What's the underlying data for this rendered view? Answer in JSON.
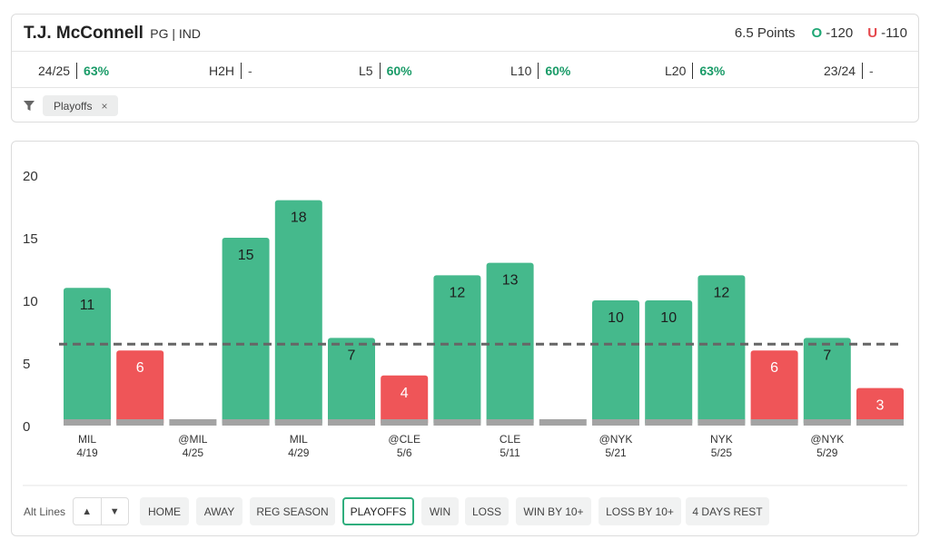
{
  "player": {
    "name": "T.J. McConnell",
    "position_team": "PG | IND"
  },
  "line": {
    "points_label": "6.5 Points",
    "over_letter": "O",
    "over_odds": "-120",
    "under_letter": "U",
    "under_odds": "-110"
  },
  "stats": [
    {
      "label": "24/25",
      "value": "63%"
    },
    {
      "label": "H2H",
      "value": "-"
    },
    {
      "label": "L5",
      "value": "60%"
    },
    {
      "label": "L10",
      "value": "60%"
    },
    {
      "label": "L20",
      "value": "63%"
    },
    {
      "label": "23/24",
      "value": "-"
    }
  ],
  "filter_chip": {
    "label": "Playoffs",
    "remove_glyph": "×"
  },
  "colors": {
    "over": "#45b98c",
    "under": "#ef5558",
    "base": "#a3a3a3",
    "line": "#666666",
    "accent": "#2fae7d"
  },
  "chart_data": {
    "type": "bar",
    "ylim": [
      0,
      20
    ],
    "yticks": [
      0,
      5,
      10,
      15,
      20
    ],
    "threshold": 6.5,
    "categories": [
      "MIL\n4/19",
      "",
      "@MIL\n4/25",
      "",
      "MIL\n4/29",
      "",
      "@CLE\n5/6",
      "",
      "CLE\n5/11",
      "",
      "@NYK\n5/21",
      "",
      "NYK\n5/25",
      "",
      "@NYK\n5/29",
      ""
    ],
    "values": [
      11,
      6,
      0,
      15,
      18,
      7,
      4,
      12,
      13,
      0,
      10,
      10,
      12,
      6,
      7,
      3
    ],
    "value_labels": [
      "11",
      "6",
      "",
      "15",
      "18",
      "7",
      "4",
      "12",
      "13",
      "",
      "10",
      "10",
      "12",
      "6",
      "7",
      "3"
    ],
    "x_labels": [
      {
        "opp": "MIL",
        "date": "4/19"
      },
      {
        "opp": "@MIL",
        "date": "4/25"
      },
      {
        "opp": "MIL",
        "date": "4/29"
      },
      {
        "opp": "@CLE",
        "date": "5/6"
      },
      {
        "opp": "CLE",
        "date": "5/11"
      },
      {
        "opp": "@NYK",
        "date": "5/21"
      },
      {
        "opp": "NYK",
        "date": "5/25"
      },
      {
        "opp": "@NYK",
        "date": "5/29"
      }
    ],
    "grid": false,
    "title": "",
    "xlabel": "",
    "ylabel": ""
  },
  "controls": {
    "alt_lines_label": "Alt Lines",
    "up_glyph": "▲",
    "down_glyph": "▼",
    "buttons": [
      "HOME",
      "AWAY",
      "REG SEASON",
      "PLAYOFFS",
      "WIN",
      "LOSS",
      "WIN BY 10+",
      "LOSS BY 10+",
      "4 DAYS REST"
    ],
    "active_button": "PLAYOFFS"
  }
}
